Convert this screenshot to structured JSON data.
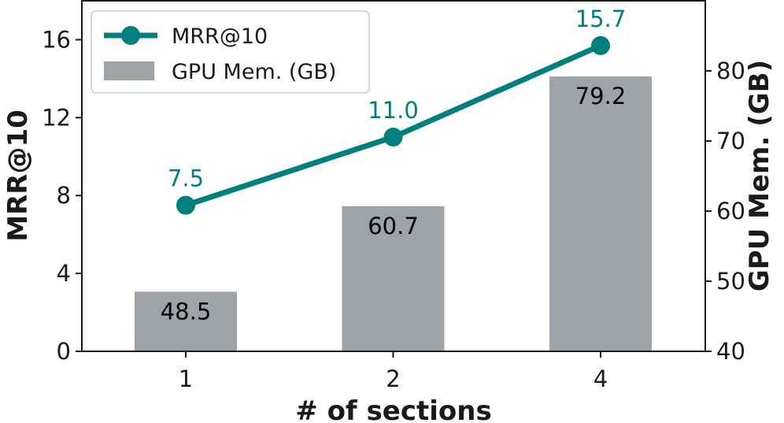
{
  "chart_data": {
    "type": "bar+line",
    "categories": [
      "1",
      "2",
      "4"
    ],
    "xlabel": "# of sections",
    "series": [
      {
        "name": "GPU Mem. (GB)",
        "type": "bar",
        "axis": "right",
        "values": [
          48.5,
          60.7,
          79.2
        ],
        "labels": [
          "48.5",
          "60.7",
          "79.2"
        ],
        "color": "#9ea3a8"
      },
      {
        "name": "MRR@10",
        "type": "line",
        "axis": "left",
        "values": [
          7.5,
          11.0,
          15.7
        ],
        "labels": [
          "7.5",
          "11.0",
          "15.7"
        ],
        "color": "#007f7f"
      }
    ],
    "y_left": {
      "label": "MRR@10",
      "ylim": [
        0,
        18
      ],
      "ticks": [
        0,
        4,
        8,
        12,
        16
      ],
      "tick_labels": [
        "0",
        "4",
        "8",
        "12",
        "16"
      ]
    },
    "y_right": {
      "label": "GPU Mem. (GB)",
      "ylim": [
        40,
        90
      ],
      "ticks": [
        40,
        50,
        60,
        70,
        80
      ],
      "tick_labels": [
        "40",
        "50",
        "60",
        "70",
        "80"
      ]
    },
    "grid": false,
    "legend": "top-left"
  }
}
